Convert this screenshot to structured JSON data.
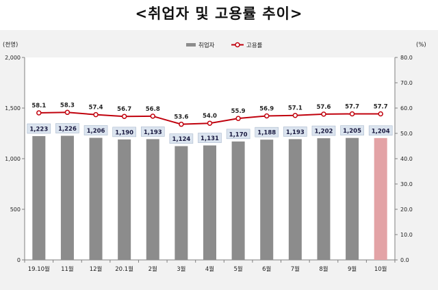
{
  "title": "<취업자 및 고용률 추이>",
  "chart_data": {
    "type": "bar",
    "categories": [
      "19.10월",
      "11월",
      "12월",
      "20.1월",
      "2월",
      "3월",
      "4월",
      "5월",
      "6월",
      "7월",
      "8월",
      "9월",
      "10월"
    ],
    "series": [
      {
        "name": "취업자",
        "type": "bar",
        "axis": "left",
        "values": [
          1223,
          1226,
          1206,
          1190,
          1193,
          1124,
          1131,
          1170,
          1188,
          1193,
          1202,
          1205,
          1204
        ],
        "labels": [
          "1,223",
          "1,226",
          "1,206",
          "1,190",
          "1,193",
          "1,124",
          "1,131",
          "1,170",
          "1,188",
          "1,193",
          "1,202",
          "1,205",
          "1,204"
        ],
        "color": "#8c8c8c",
        "highlight_color": "#e3a3a6",
        "highlight_index": 12
      },
      {
        "name": "고용률",
        "type": "line",
        "axis": "right",
        "values": [
          58.1,
          58.3,
          57.4,
          56.7,
          56.8,
          53.6,
          54.0,
          55.9,
          56.9,
          57.1,
          57.6,
          57.7,
          57.7
        ],
        "labels": [
          "58.1",
          "58.3",
          "57.4",
          "56.7",
          "56.8",
          "53.6",
          "54.0",
          "55.9",
          "56.9",
          "57.1",
          "57.6",
          "57.7",
          "57.7"
        ],
        "color": "#c0000c"
      }
    ],
    "y_left": {
      "unit": "(천명)",
      "ylim": [
        0,
        2000
      ],
      "ticks": [
        0,
        500,
        1000,
        1500,
        2000
      ],
      "tick_labels": [
        "0",
        "500",
        "1,000",
        "1,500",
        "2,000"
      ]
    },
    "y_right": {
      "unit": "(%)",
      "ylim": [
        0,
        80
      ],
      "ticks": [
        0,
        10,
        20,
        30,
        40,
        50,
        60,
        70,
        80
      ],
      "tick_labels": [
        "0.0",
        "10.0",
        "20.0",
        "30.0",
        "40.0",
        "50.0",
        "60.0",
        "70.0",
        "80.0"
      ]
    },
    "legend_position": "top-center",
    "grid": false
  }
}
